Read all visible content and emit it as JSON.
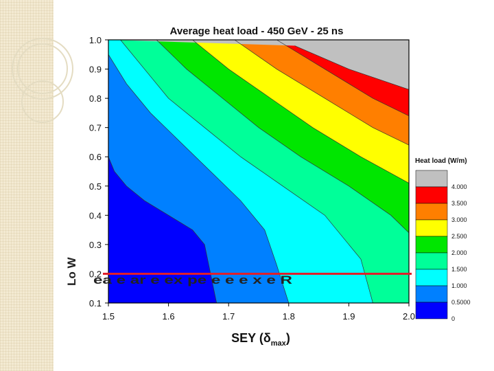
{
  "chart_data": {
    "type": "heatmap",
    "subtype": "filled-contour",
    "title": "Average heat load - 450 GeV - 25 ns",
    "xlabel": "SEY (δmax)",
    "xlabel_parts": {
      "main": "SEY (",
      "delta": "δ",
      "sub": "max",
      "close": ")"
    },
    "ylabel": "",
    "xlim": [
      1.5,
      2.0
    ],
    "ylim": [
      0.1,
      1.0
    ],
    "x_ticks": [
      "1.5",
      "1.6",
      "1.7",
      "1.8",
      "1.9",
      "2.0"
    ],
    "y_ticks": [
      "0.1",
      "0.2",
      "0.3",
      "0.4",
      "0.5",
      "0.6",
      "0.7",
      "0.8",
      "0.9",
      "1.0"
    ],
    "legend": {
      "title": "Heat load (W/m)",
      "levels": [
        {
          "label": "4.000",
          "color": "#c0c0c0"
        },
        {
          "label": "3.500",
          "color": "#ff0000"
        },
        {
          "label": "3.000",
          "color": "#ff7f00"
        },
        {
          "label": "2.500",
          "color": "#ffff00"
        },
        {
          "label": "2.000",
          "color": "#00e600"
        },
        {
          "label": "1.500",
          "color": "#00ff99"
        },
        {
          "label": "1.000",
          "color": "#00ffff"
        },
        {
          "label": "0.5000",
          "color": "#0080ff"
        },
        {
          "label": "0",
          "color": "#0000ff"
        }
      ]
    },
    "boundaries": [
      {
        "x": [
          1.5,
          1.51,
          1.53,
          1.56,
          1.6,
          1.64,
          1.66,
          1.67,
          1.68
        ],
        "y": [
          0.6,
          0.55,
          0.5,
          0.45,
          0.4,
          0.35,
          0.3,
          0.2,
          0.1
        ]
      },
      {
        "x": [
          1.5,
          1.53,
          1.57,
          1.62,
          1.67,
          1.72,
          1.76,
          1.78,
          1.8
        ],
        "y": [
          0.95,
          0.85,
          0.75,
          0.65,
          0.55,
          0.45,
          0.35,
          0.23,
          0.1
        ]
      },
      {
        "x": [
          1.52,
          1.56,
          1.6,
          1.66,
          1.72,
          1.79,
          1.86,
          1.92,
          1.94
        ],
        "y": [
          1.0,
          0.9,
          0.8,
          0.7,
          0.6,
          0.5,
          0.4,
          0.25,
          0.1
        ]
      },
      {
        "x": [
          1.58,
          1.63,
          1.69,
          1.75,
          1.82,
          1.9,
          1.97,
          2.0
        ],
        "y": [
          1.0,
          0.9,
          0.8,
          0.7,
          0.6,
          0.5,
          0.4,
          0.34
        ]
      },
      {
        "x": [
          1.64,
          1.7,
          1.77,
          1.84,
          1.92,
          2.0
        ],
        "y": [
          1.0,
          0.9,
          0.8,
          0.7,
          0.6,
          0.51
        ]
      },
      {
        "x": [
          1.71,
          1.78,
          1.86,
          1.94,
          2.0
        ],
        "y": [
          1.0,
          0.9,
          0.8,
          0.7,
          0.64
        ]
      },
      {
        "x": [
          1.78,
          1.86,
          1.94,
          2.0
        ],
        "y": [
          1.0,
          0.9,
          0.8,
          0.74
        ]
      },
      {
        "x": [
          1.81,
          1.9,
          2.0
        ],
        "y": [
          0.98,
          0.9,
          0.83
        ]
      }
    ],
    "reference_line": {
      "y": 0.2,
      "color": "#e0202a"
    },
    "grid": false
  },
  "overlay_text": {
    "rotated_left": "Lo W",
    "garbled": "ea e ar e ex  pe  e e e  x  e  R"
  }
}
